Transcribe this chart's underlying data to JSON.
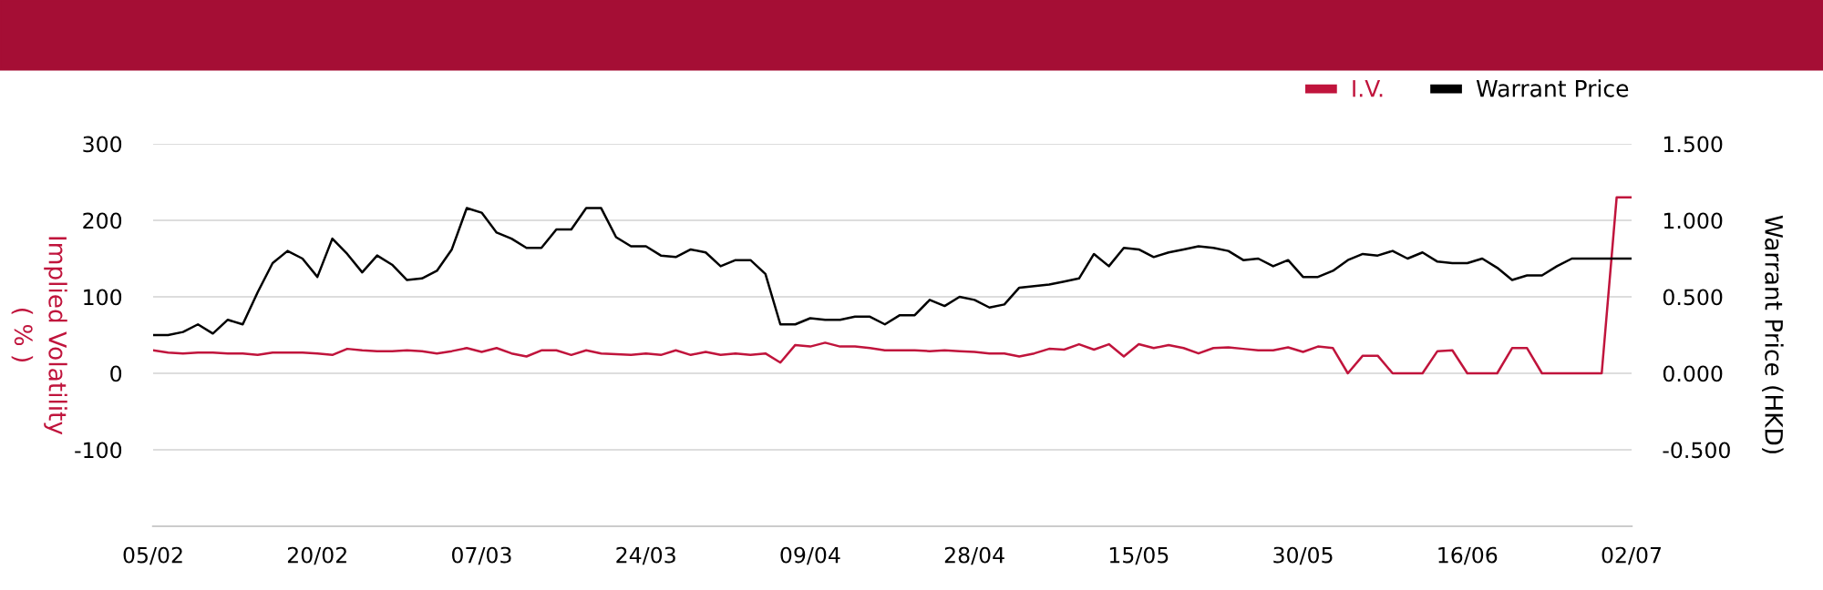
{
  "chart_data": {
    "type": "line",
    "categories": [
      "05/02",
      null,
      null,
      null,
      null,
      null,
      null,
      null,
      null,
      null,
      null,
      "20/02",
      null,
      null,
      null,
      null,
      null,
      null,
      null,
      null,
      null,
      null,
      "07/03",
      null,
      null,
      null,
      null,
      null,
      null,
      null,
      null,
      null,
      null,
      "24/03",
      null,
      null,
      null,
      null,
      null,
      null,
      null,
      null,
      null,
      null,
      "09/04",
      null,
      null,
      null,
      null,
      null,
      null,
      null,
      null,
      null,
      null,
      "28/04",
      null,
      null,
      null,
      null,
      null,
      null,
      null,
      null,
      null,
      null,
      "15/05",
      null,
      null,
      null,
      null,
      null,
      null,
      null,
      null,
      null,
      null,
      "30/05",
      null,
      null,
      null,
      null,
      null,
      null,
      null,
      null,
      null,
      null,
      "16/06",
      null,
      null,
      null,
      null,
      null,
      null,
      null,
      null,
      null,
      null,
      "02/07"
    ],
    "series": [
      {
        "name": "I.V.",
        "color": "#c0143c",
        "values": [
          30,
          27,
          26,
          27,
          27,
          26,
          26,
          24,
          27,
          27,
          27,
          26,
          24,
          32,
          30,
          29,
          29,
          30,
          29,
          26,
          29,
          33,
          28,
          33,
          26,
          22,
          30,
          30,
          24,
          30,
          26,
          25,
          24,
          26,
          24,
          30,
          24,
          28,
          24,
          26,
          24,
          26,
          14,
          37,
          35,
          40,
          35,
          35,
          33,
          30,
          30,
          30,
          29,
          30,
          29,
          28,
          26,
          26,
          22,
          26,
          32,
          31,
          38,
          31,
          38,
          22,
          38,
          33,
          37,
          33,
          26,
          33,
          34,
          32,
          30,
          30,
          34,
          28,
          35,
          33,
          0,
          23,
          23,
          0,
          0,
          0,
          29,
          30,
          0,
          0,
          0,
          33,
          33,
          0,
          0,
          0,
          0,
          0,
          230,
          230
        ]
      },
      {
        "name": "Warrant Price",
        "color": "#000000",
        "axis": "y2",
        "values": [
          0.25,
          0.25,
          0.27,
          0.32,
          0.26,
          0.35,
          0.32,
          0.53,
          0.72,
          0.8,
          0.75,
          0.63,
          0.88,
          0.78,
          0.66,
          0.77,
          0.71,
          0.61,
          0.62,
          0.67,
          0.81,
          1.08,
          1.05,
          0.92,
          0.88,
          0.82,
          0.82,
          0.94,
          0.94,
          1.08,
          1.08,
          0.89,
          0.83,
          0.83,
          0.77,
          0.76,
          0.81,
          0.79,
          0.7,
          0.74,
          0.74,
          0.65,
          0.32,
          0.32,
          0.36,
          0.35,
          0.35,
          0.37,
          0.37,
          0.32,
          0.38,
          0.38,
          0.48,
          0.44,
          0.5,
          0.48,
          0.43,
          0.45,
          0.56,
          0.57,
          0.58,
          0.6,
          0.62,
          0.78,
          0.7,
          0.82,
          0.81,
          0.76,
          0.79,
          0.81,
          0.83,
          0.82,
          0.8,
          0.74,
          0.75,
          0.7,
          0.74,
          0.63,
          0.63,
          0.67,
          0.74,
          0.78,
          0.77,
          0.8,
          0.75,
          0.79,
          0.73,
          0.72,
          0.72,
          0.75,
          0.69,
          0.61,
          0.64,
          0.64,
          0.7,
          0.75,
          0.75,
          0.75,
          0.75,
          0.75
        ]
      }
    ],
    "ylabel": "Implied Volatility\n( % )",
    "y2label": "Warrant Price (HKD)",
    "ylim": [
      -200,
      300
    ],
    "yticks": [
      -100,
      0,
      100,
      200,
      300
    ],
    "y2lim": [
      -1.0,
      1.5
    ],
    "y2ticks": [
      {
        "value": -0.5,
        "label": "-0.500"
      },
      {
        "value": 0,
        "label": "0.000"
      },
      {
        "value": 0.5,
        "label": "0.500"
      },
      {
        "value": 1.0,
        "label": "1.000"
      },
      {
        "value": 1.5,
        "label": "1.500"
      }
    ],
    "grid": "y",
    "legend": "top right"
  }
}
